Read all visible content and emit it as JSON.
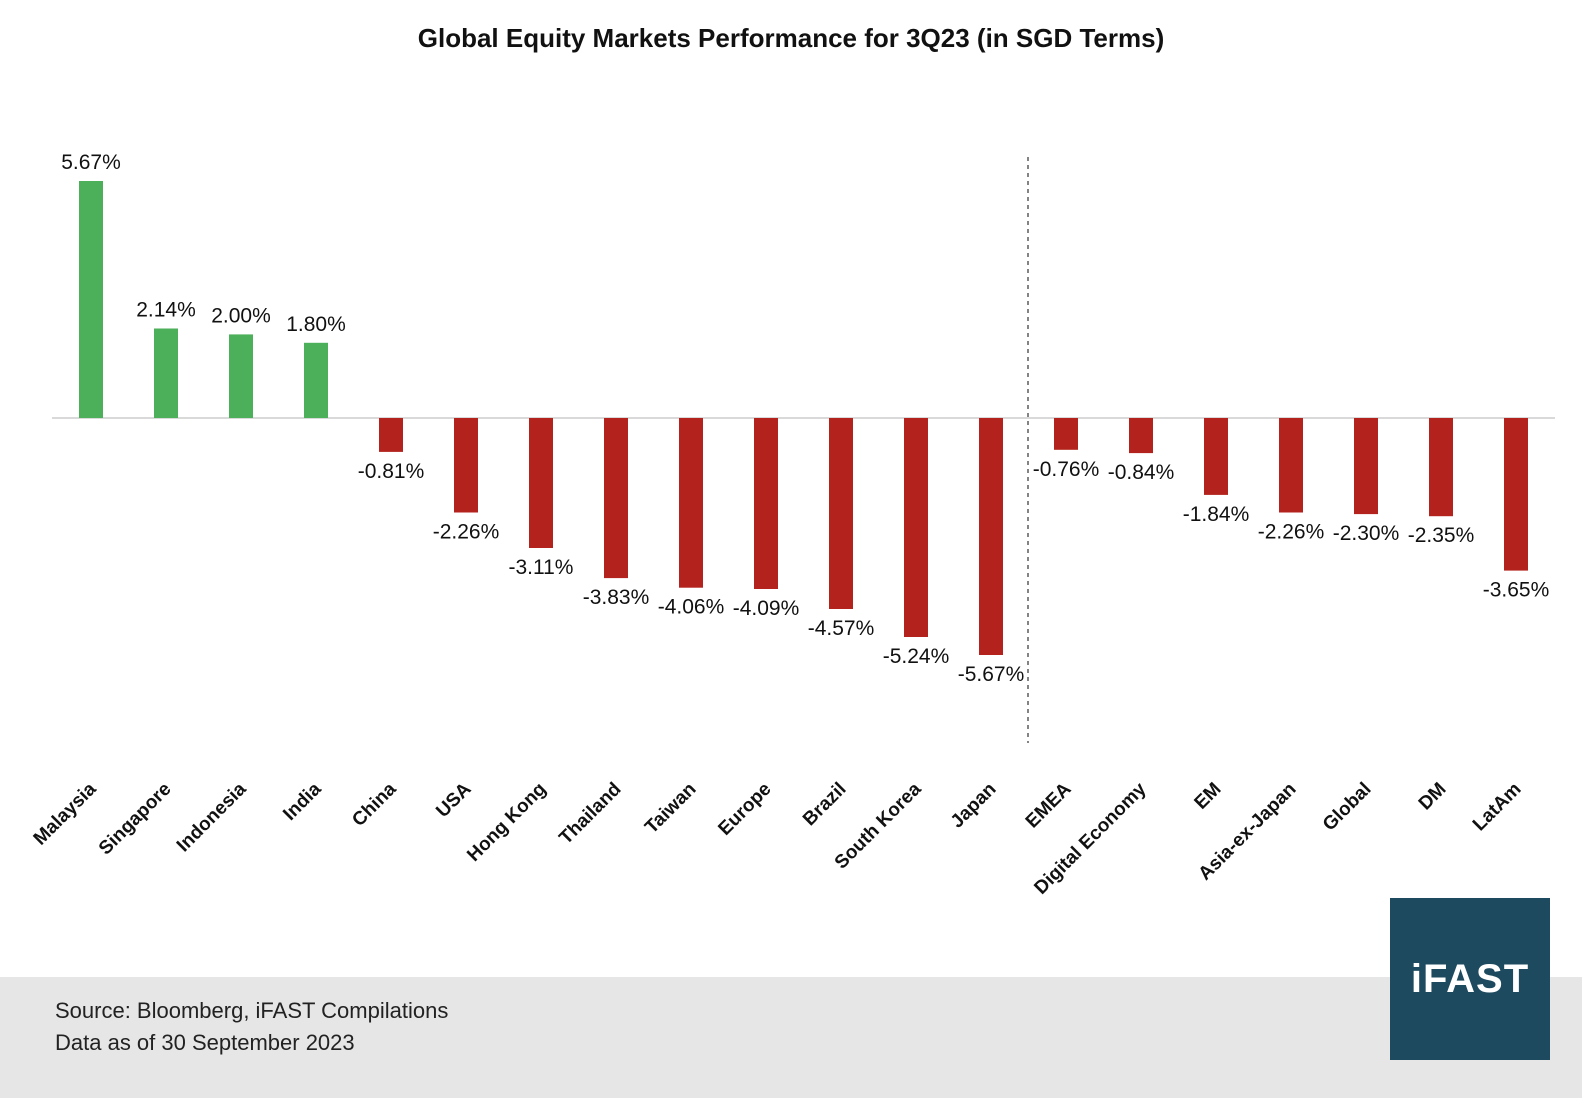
{
  "chart_data": {
    "type": "bar",
    "title": "Global Equity Markets Performance for 3Q23 (in SGD Terms)",
    "categories": [
      "Malaysia",
      "Singapore",
      "Indonesia",
      "India",
      "China",
      "USA",
      "Hong Kong",
      "Thailand",
      "Taiwan",
      "Europe",
      "Brazil",
      "South Korea",
      "Japan",
      "EMEA",
      "Digital Economy",
      "EM",
      "Asia-ex-Japan",
      "Global",
      "DM",
      "LatAm"
    ],
    "values": [
      5.67,
      2.14,
      2.0,
      1.8,
      -0.81,
      -2.26,
      -3.11,
      -3.83,
      -4.06,
      -4.09,
      -4.57,
      -5.24,
      -5.67,
      -0.76,
      -0.84,
      -1.84,
      -2.26,
      -2.3,
      -2.35,
      -3.65
    ],
    "data_labels": [
      "5.67%",
      "2.14%",
      "2.00%",
      "1.80%",
      "-0.81%",
      "-2.26%",
      "-3.11%",
      "-3.83%",
      "-4.06%",
      "-4.09%",
      "-4.57%",
      "-5.24%",
      "-5.67%",
      "-0.76%",
      "-0.84%",
      "-1.84%",
      "-2.26%",
      "-2.30%",
      "-2.35%",
      "-3.65%"
    ],
    "colors": {
      "positive": "#4caf5a",
      "negative": "#b3221c"
    },
    "divider_after_category": "Japan",
    "grid": false,
    "legend": "none",
    "xlabel": "",
    "ylabel": ""
  },
  "footer": {
    "source": "Source: Bloomberg, iFAST Compilations",
    "date_note": "Data as of 30 September 2023"
  },
  "logo": {
    "text": "iFAST",
    "color": "#1e4a5f"
  }
}
